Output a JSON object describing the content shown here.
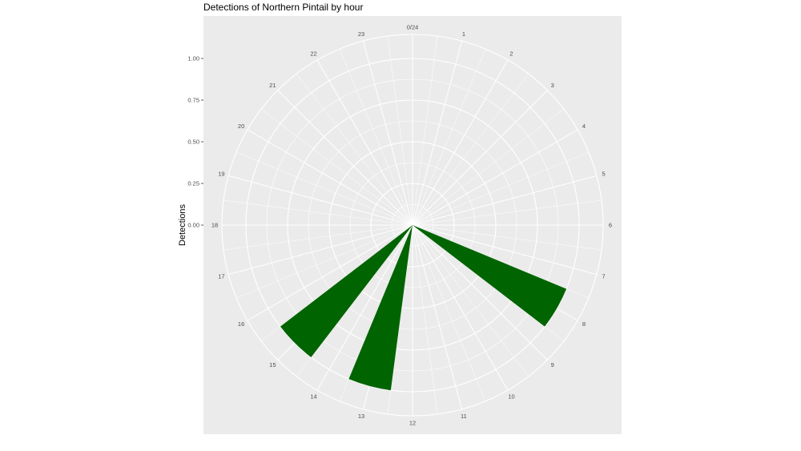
{
  "chart_data": {
    "type": "bar",
    "coord": "polar",
    "title": "Detections of Northern Pintail by hour",
    "ylabel": "Detections",
    "xlabel": "",
    "categories": [
      "0/24",
      "1",
      "2",
      "3",
      "4",
      "5",
      "6",
      "7",
      "8",
      "9",
      "10",
      "11",
      "12",
      "13",
      "14",
      "15",
      "16",
      "17",
      "18",
      "19",
      "20",
      "21",
      "22",
      "23"
    ],
    "values": [
      0,
      0,
      0,
      0,
      0,
      0,
      0,
      0,
      1,
      0,
      0,
      0,
      0,
      1,
      0,
      1,
      0,
      0,
      0,
      0,
      0,
      0,
      0,
      0
    ],
    "ylim": [
      0,
      1.15
    ],
    "yticks": [
      "0.00",
      "0.25",
      "0.50",
      "0.75",
      "1.00"
    ],
    "ytick_values": [
      0,
      0.25,
      0.5,
      0.75,
      1.0
    ],
    "bar_color": "#006400",
    "panel_color": "#ebebeb",
    "grid_color": "#ffffff",
    "grid": true
  }
}
